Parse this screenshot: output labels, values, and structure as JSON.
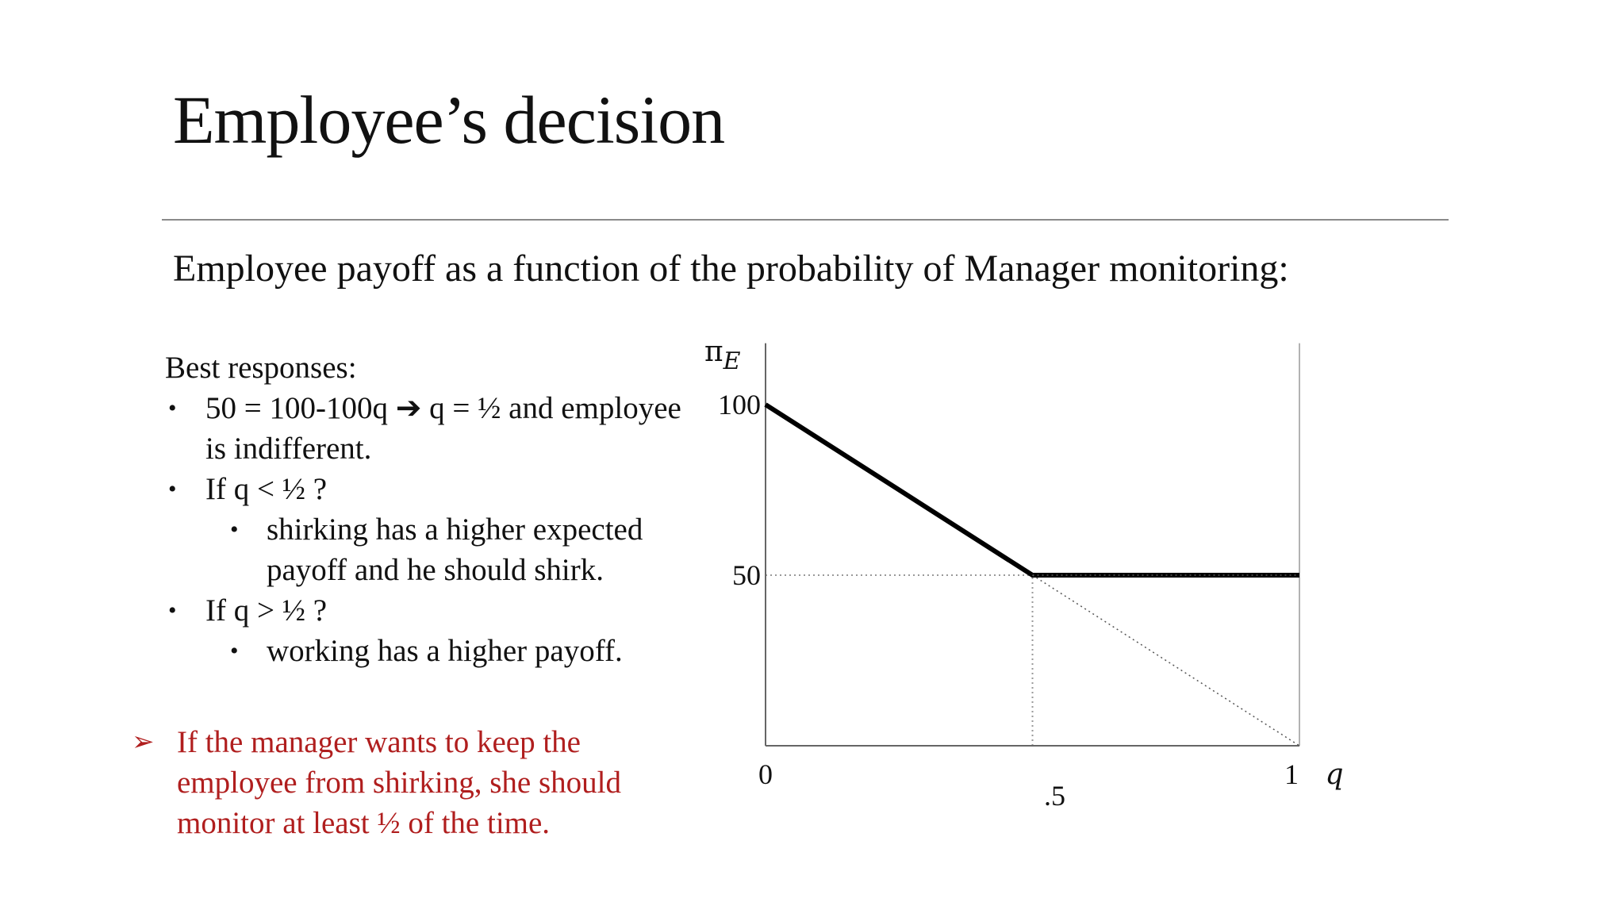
{
  "slide": {
    "title": "Employee’s decision",
    "subtitle": "Employee payoff as a function of the probability of Manager monitoring:"
  },
  "best_responses": {
    "heading": "Best responses:",
    "bullet_glyph": "•",
    "items": [
      {
        "text": "50 = 100-100q ➔ q = ½ and employee is indifferent.",
        "sub": []
      },
      {
        "text": "If q < ½ ?",
        "sub": [
          "shirking has a higher expected payoff and he should shirk."
        ]
      },
      {
        "text": "If q > ½ ?",
        "sub": [
          "working has a higher payoff."
        ]
      }
    ]
  },
  "conclusion": {
    "marker": "➢",
    "text": "If the manager wants to keep the employee from shirking, she should monitor at least ½ of the time.",
    "color": "#b01e1e"
  },
  "chart_data": {
    "type": "line",
    "xlabel": "q",
    "ylabel": "πE",
    "ylabel_symbol": "π",
    "ylabel_subscript": "E",
    "xlim": [
      0,
      1
    ],
    "ylim": [
      0,
      100
    ],
    "x_ticks": [
      {
        "value": 0,
        "label": "0"
      },
      {
        "value": 0.5,
        "label": ".5"
      },
      {
        "value": 1,
        "label": "1"
      }
    ],
    "y_ticks": [
      {
        "value": 100,
        "label": "100"
      },
      {
        "value": 50,
        "label": "50"
      }
    ],
    "series": [
      {
        "style": "solid-bold",
        "x": [
          0,
          0.5,
          1
        ],
        "y": [
          100,
          50,
          50
        ]
      },
      {
        "style": "dotted",
        "x": [
          0.5,
          1
        ],
        "y": [
          50,
          0
        ]
      },
      {
        "style": "dotted",
        "x": [
          0.5,
          1
        ],
        "y": [
          50,
          50
        ]
      }
    ],
    "reference_lines": [
      {
        "orientation": "horizontal",
        "value": 50,
        "from": 0,
        "to": 0.5,
        "style": "dotted"
      },
      {
        "orientation": "vertical",
        "value": 0.5,
        "from": 0,
        "to": 50,
        "style": "dotted"
      },
      {
        "orientation": "vertical",
        "value": 1,
        "from": 0,
        "to": 118,
        "style": "thin"
      }
    ],
    "grid": false,
    "colors": {
      "line": "#000000",
      "axis": "#666666",
      "guide": "#999999"
    }
  }
}
